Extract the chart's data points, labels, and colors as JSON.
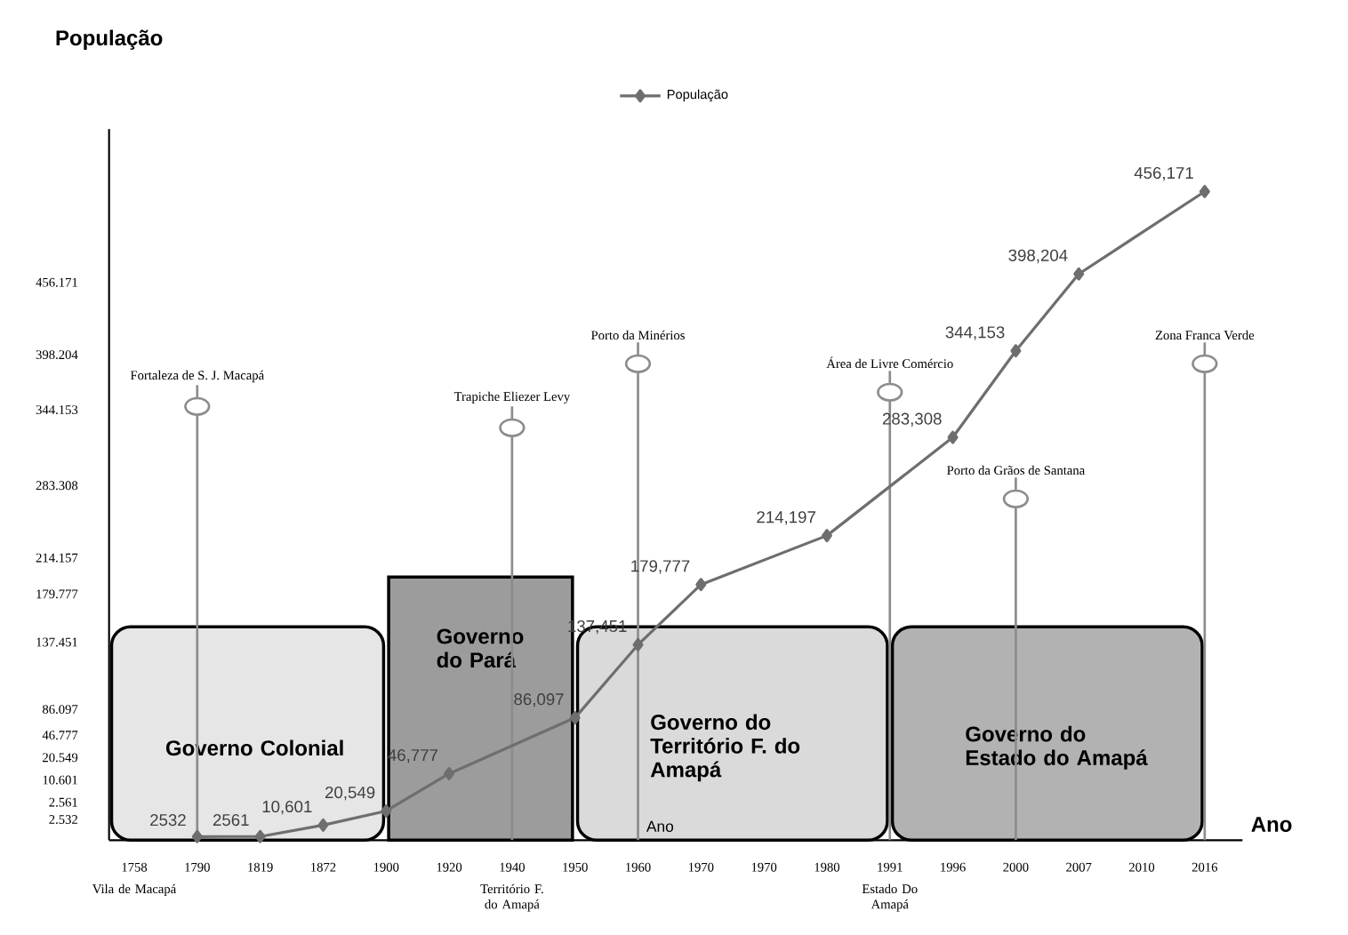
{
  "chart_data": {
    "type": "line",
    "xlabel": "Ano",
    "ylabel": "População",
    "categories": [
      "1758",
      "1790",
      "1819",
      "1872",
      "1900",
      "1920",
      "1940",
      "1950",
      "1960",
      "1970",
      "1970",
      "1980",
      "1991",
      "1996",
      "2000",
      "2007",
      "2010",
      "2016"
    ],
    "series": [
      {
        "name": "População",
        "color": "#6e6e6e",
        "values": [
          null,
          2532,
          2561,
          10601,
          20549,
          46777,
          null,
          86097,
          137451,
          179777,
          null,
          214197,
          null,
          283308,
          344153,
          398204,
          null,
          456171
        ],
        "value_labels": [
          null,
          "2532",
          "2561",
          "10,601",
          "20,549",
          "46,777",
          null,
          "86,097",
          "137,451",
          "179,777",
          null,
          "214,197",
          null,
          "283,308",
          "344,153",
          "398,204",
          null,
          "456,171"
        ]
      }
    ],
    "ylim": [
      0,
      500000
    ],
    "marker": "diamond",
    "line_style": "solid",
    "legend": "top",
    "grid": false,
    "bands": [
      {
        "axis": "x",
        "from": "1758",
        "to": "1900",
        "label": "Governo Colonial",
        "color": "#e6e6e6"
      },
      {
        "axis": "x",
        "from": "1900",
        "to": "1950",
        "label": "Governo do Pará",
        "color": "#9c9c9c"
      },
      {
        "axis": "x",
        "from": "1950",
        "to": "1991",
        "label": "Governo do Território F. do Amapá",
        "color": "#dadada"
      },
      {
        "axis": "x",
        "from": "1991",
        "to": "2016",
        "label": "Governo do Estado do Amapá",
        "color": "#b2b2b2"
      }
    ],
    "ref_lines": [
      {
        "axis": "x",
        "value": "1790",
        "label": "Fortaleza de S. J. Macapá",
        "color": "#8c8c8c"
      },
      {
        "axis": "x",
        "value": "1940",
        "label": "Trapiche Eliezer Levy",
        "color": "#8c8c8c"
      },
      {
        "axis": "x",
        "value": "1960",
        "label": "Porto da Minérios",
        "color": "#8c8c8c"
      },
      {
        "axis": "x",
        "value": "1991",
        "label": "Área de Livre Comércio",
        "color": "#8c8c8c"
      },
      {
        "axis": "x",
        "value": "2000",
        "label": "Porto da Grãos de Santana",
        "color": "#8c8c8c"
      },
      {
        "axis": "x",
        "value": "2016",
        "label": "Zona Franca Verde",
        "color": "#8c8c8c"
      }
    ],
    "annotations": [
      "2.532",
      "2.561",
      "10.601",
      "20.549",
      "46.777",
      "86.097",
      "137.451",
      "179.777",
      "214.157",
      "283.308",
      "344.153",
      "398.204",
      "456.171",
      "Vila de Macapá",
      "Território F. do Amapá",
      "Estado Do Amapá",
      {
        "text": "Ano",
        "x": "1960",
        "y": 0
      }
    ]
  }
}
